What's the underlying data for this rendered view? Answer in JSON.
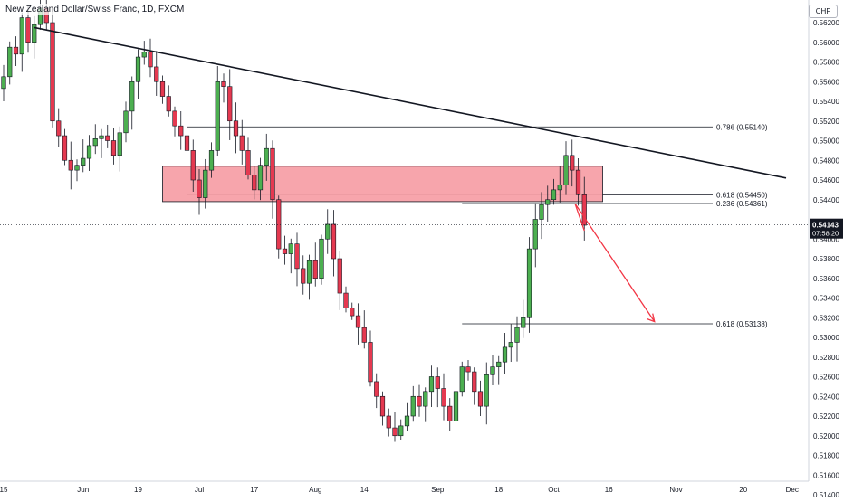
{
  "header": {
    "title": "New Zealand Dollar/Swiss Franc, 1D, FXCM",
    "currency": "CHF"
  },
  "colors": {
    "up": "#26a69a",
    "down": "#ef5350",
    "up_body": "#4caf50",
    "down_body": "#e53950",
    "zone_fill": "#f7a0a8",
    "zone_border": "#131722",
    "trendline": "#131722",
    "projection": "#f23645",
    "price_tag": "#131722"
  },
  "chart_data": {
    "type": "candlestick",
    "title": "New Zealand Dollar/Swiss Franc, 1D, FXCM",
    "xlabel": "",
    "ylabel": "",
    "ylim": [
      0.514,
      0.564
    ],
    "grid": false,
    "y_ticks": [
      "0.56200",
      "0.56000",
      "0.55800",
      "0.55600",
      "0.55400",
      "0.55200",
      "0.55000",
      "0.54800",
      "0.54600",
      "0.54400",
      "0.54200",
      "0.54000",
      "0.53800",
      "0.53600",
      "0.53400",
      "0.53200",
      "0.53000",
      "0.52800",
      "0.52600",
      "0.52400",
      "0.52200",
      "0.52000",
      "0.51800",
      "0.51600",
      "0.51400"
    ],
    "x_ticks": [
      {
        "label": "15",
        "bar": 0
      },
      {
        "label": "Jun",
        "bar": 13
      },
      {
        "label": "19",
        "bar": 22
      },
      {
        "label": "Jul",
        "bar": 32
      },
      {
        "label": "17",
        "bar": 41
      },
      {
        "label": "Aug",
        "bar": 51
      },
      {
        "label": "14",
        "bar": 59
      },
      {
        "label": "Sep",
        "bar": 71
      },
      {
        "label": "18",
        "bar": 81
      },
      {
        "label": "Oct",
        "bar": 90
      },
      {
        "label": "16",
        "bar": 99
      },
      {
        "label": "Nov",
        "bar": 110
      },
      {
        "label": "20",
        "bar": 121
      },
      {
        "label": "Dec",
        "bar": 129
      }
    ],
    "closes": [
      0.5565,
      0.5595,
      0.5588,
      0.5625,
      0.56,
      0.5618,
      0.5635,
      0.562,
      0.552,
      0.5505,
      0.548,
      0.547,
      0.5475,
      0.5482,
      0.5495,
      0.5502,
      0.5505,
      0.55,
      0.5485,
      0.5508,
      0.553,
      0.556,
      0.5585,
      0.559,
      0.5575,
      0.556,
      0.5545,
      0.553,
      0.5515,
      0.5505,
      0.549,
      0.546,
      0.5442,
      0.547,
      0.549,
      0.556,
      0.5555,
      0.552,
      0.5505,
      0.549,
      0.5465,
      0.545,
      0.5475,
      0.5492,
      0.544,
      0.539,
      0.5385,
      0.5395,
      0.537,
      0.5355,
      0.5378,
      0.536,
      0.54,
      0.5415,
      0.538,
      0.5345,
      0.533,
      0.5322,
      0.531,
      0.5295,
      0.5255,
      0.524,
      0.522,
      0.5208,
      0.52,
      0.521,
      0.522,
      0.524,
      0.523,
      0.5245,
      0.526,
      0.5248,
      0.523,
      0.5215,
      0.5245,
      0.527,
      0.5265,
      0.5245,
      0.523,
      0.5262,
      0.527,
      0.5275,
      0.529,
      0.5295,
      0.531,
      0.532,
      0.539,
      0.542,
      0.5435,
      0.544,
      0.545,
      0.5455,
      0.5485,
      0.547,
      0.5445,
      0.5414
    ],
    "series": [
      {
        "name": "",
        "type": "line",
        "label": "",
        "start_bar": 5,
        "start_value": 0.5615,
        "end_bar": 128,
        "end_value": 0.5462
      },
      {
        "name": "",
        "type": "zone",
        "label": "",
        "from_bar": 26,
        "to_bar": 98,
        "top": 0.5474,
        "bottom": 0.5438
      },
      {
        "name": "",
        "type": "line",
        "label": "",
        "start_bar": 92,
        "start_value": 0.5436,
        "end_bar": 105,
        "end_value": 0.5316
      }
    ],
    "levels": [
      {
        "label": "0.786 (0.55140)",
        "value": 0.5514,
        "from_bar": 30
      },
      {
        "label": "0.618 (0.54450)",
        "value": 0.5445,
        "from_bar": 30
      },
      {
        "label": "0.236 (0.54361)",
        "value": 0.54361,
        "from_bar": 75
      },
      {
        "label": "0.618 (0.53138)",
        "value": 0.53138,
        "from_bar": 75
      }
    ],
    "last_price": {
      "value": 0.54143,
      "label": "0.54143",
      "countdown": "07:58:20"
    }
  }
}
